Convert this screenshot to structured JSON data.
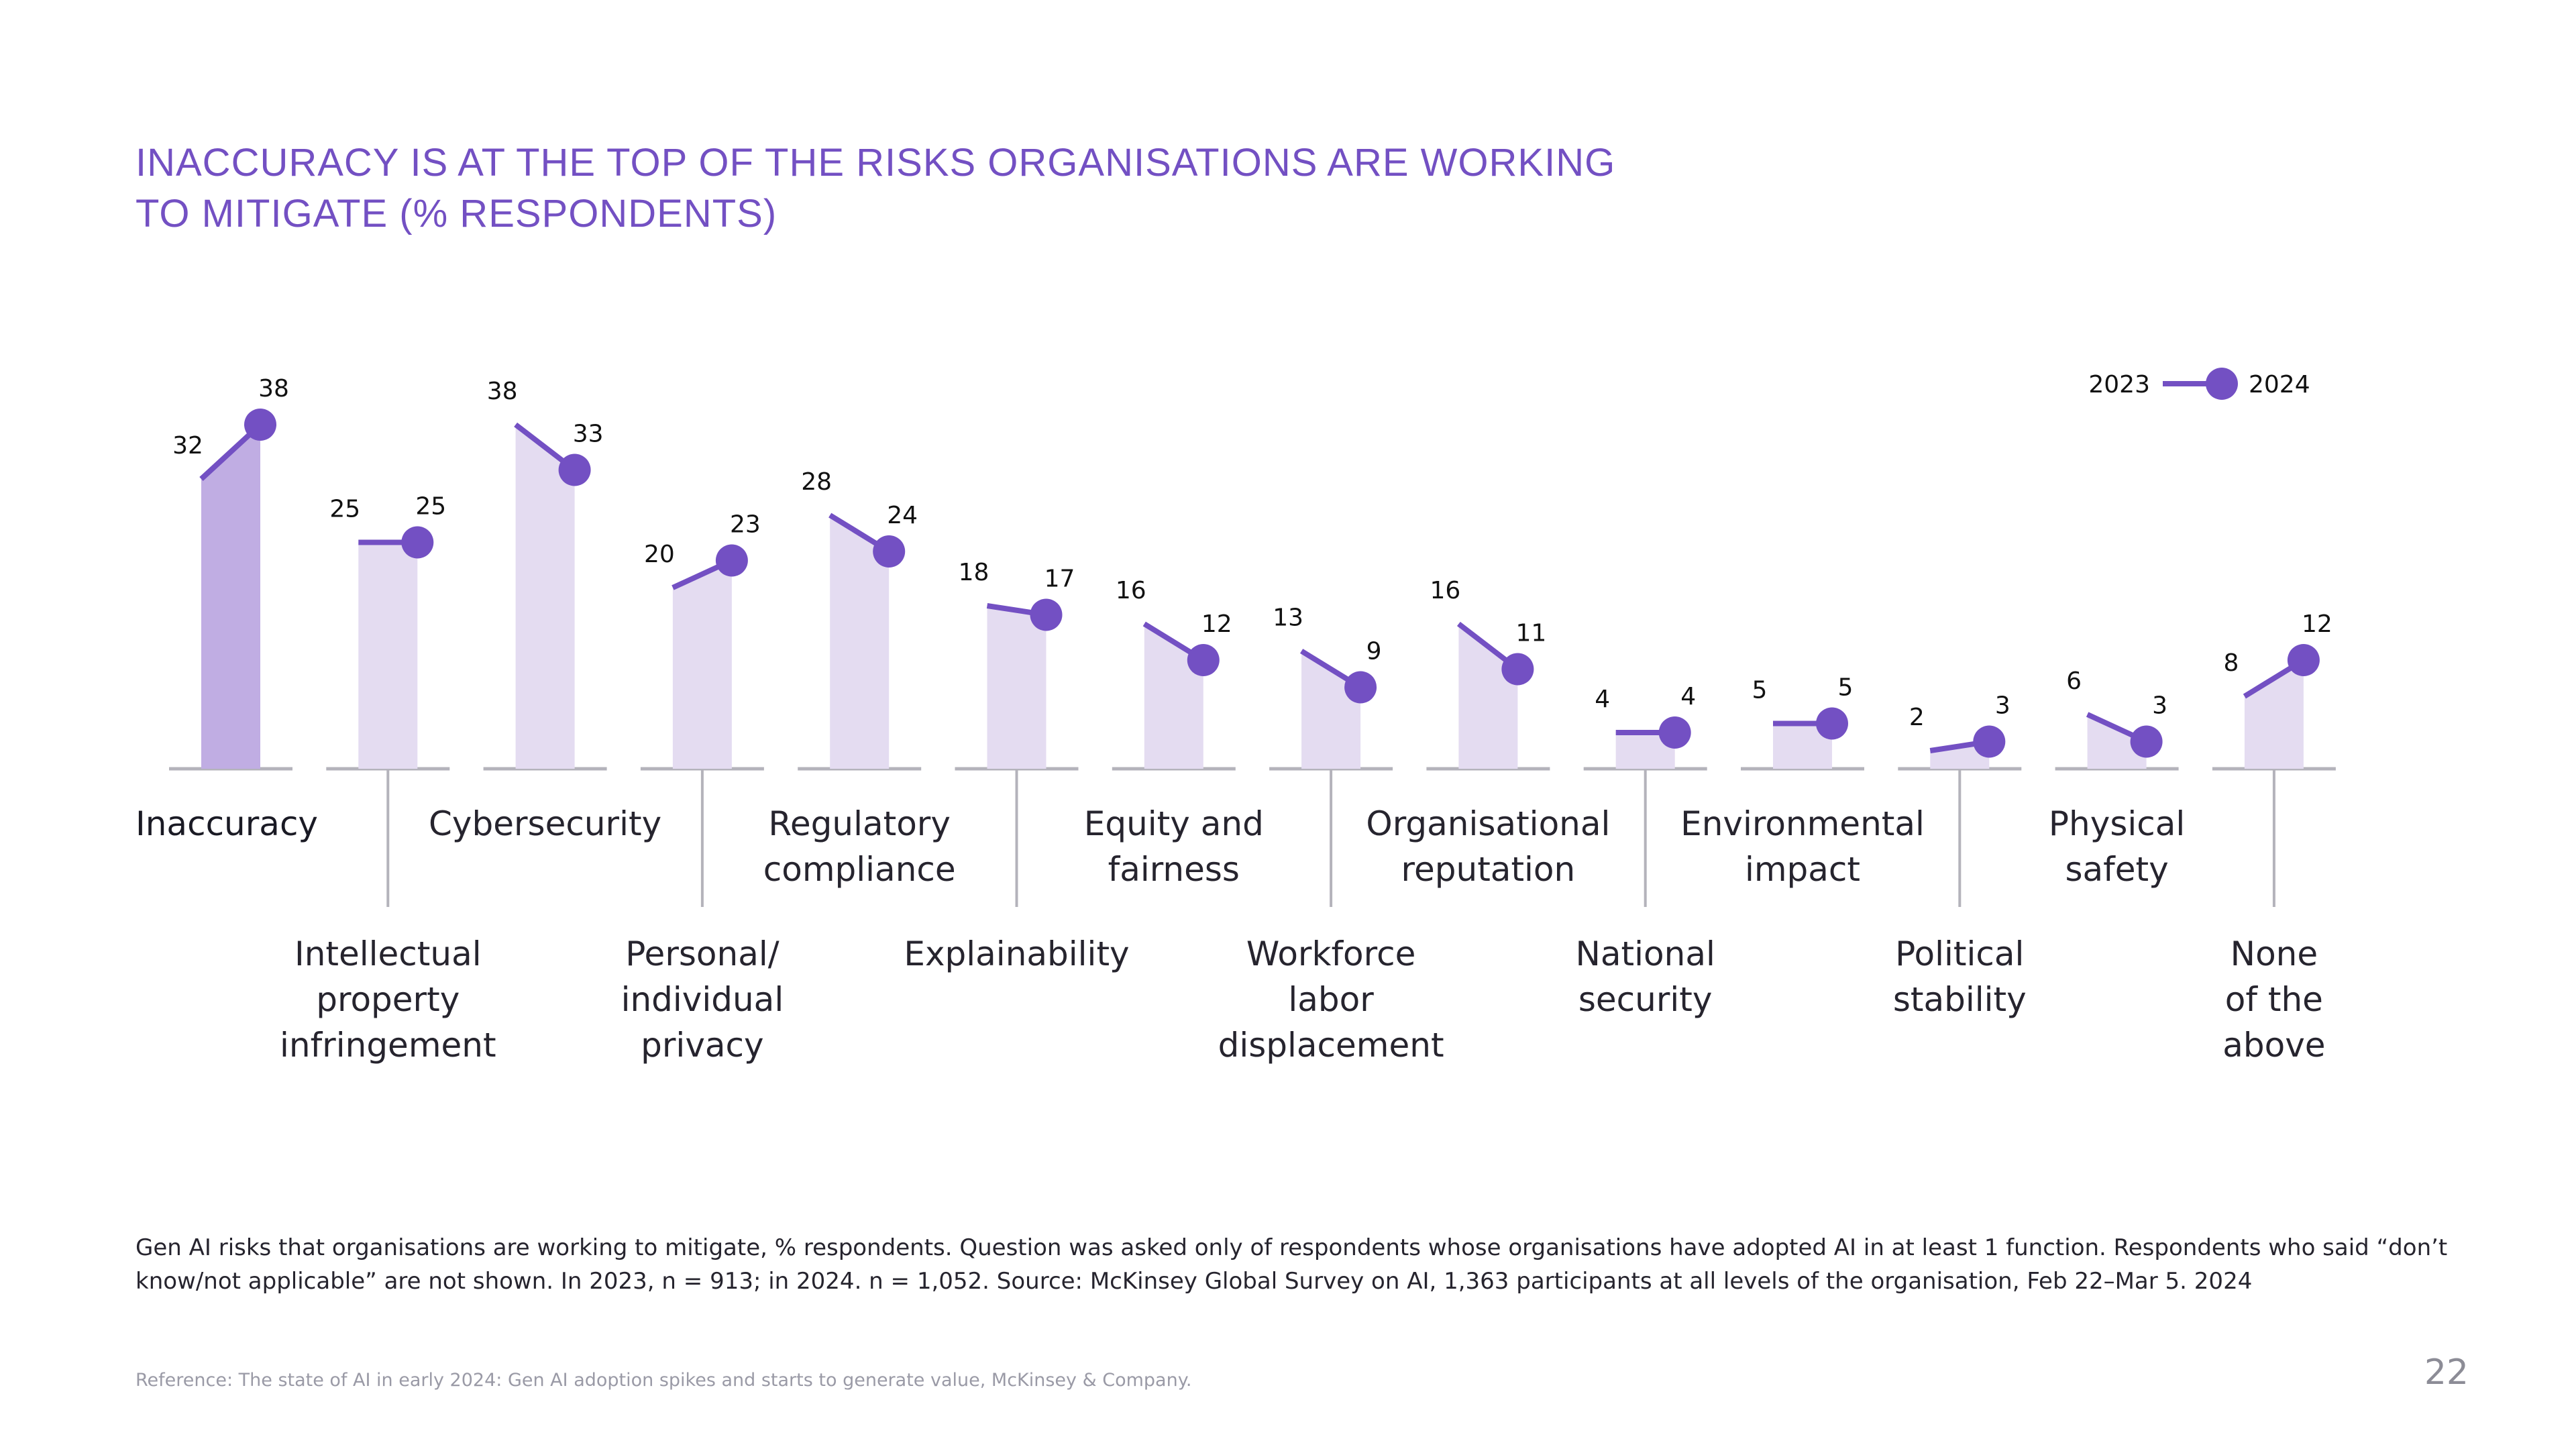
{
  "title": {
    "line1": "INACCURACY IS AT THE TOP OF THE RISKS ORGANISATIONS ARE WORKING",
    "line2": "TO MITIGATE (% RESPONDENTS)"
  },
  "colors": {
    "accent": "#7350c3",
    "bar_highlight": "#c0ade3",
    "bar": "#e4dcf1",
    "axis": "#b4b3bb",
    "title": "#7350c3"
  },
  "chart_data": {
    "type": "bar",
    "title": "Inaccuracy is at the top of the risks organisations are working to mitigate (% respondents)",
    "xlabel": "",
    "ylabel": "% respondents",
    "ylim": [
      0,
      40
    ],
    "grid": false,
    "legend_position": "top-right",
    "legend": [
      "2023",
      "2024"
    ],
    "categories": [
      "Inaccuracy",
      "Intellectual property infringement",
      "Cybersecurity",
      "Personal/ individual privacy",
      "Regulatory compliance",
      "Explainability",
      "Equity and fairness",
      "Workforce labor displacement",
      "Organisational reputation",
      "National security",
      "Environmental impact",
      "Political stability",
      "Physical safety",
      "None of the above"
    ],
    "category_labels": [
      "Inaccuracy",
      "Intellectual\nproperty\ninfringement",
      "Cybersecurity",
      "Personal/\nindividual\nprivacy",
      "Regulatory\ncompliance",
      "Explainability",
      "Equity and\nfairness",
      "Workforce\nlabor\ndisplacement",
      "Organisational\nreputation",
      "National\nsecurity",
      "Environmental\nimpact",
      "Political\nstability",
      "Physical\nsafety",
      "None\nof the\nabove"
    ],
    "series": [
      {
        "name": "2023",
        "values": [
          32,
          25,
          38,
          20,
          28,
          18,
          16,
          13,
          16,
          4,
          5,
          2,
          6,
          8
        ]
      },
      {
        "name": "2024",
        "values": [
          38,
          25,
          33,
          23,
          24,
          17,
          12,
          9,
          11,
          4,
          5,
          3,
          3,
          12
        ]
      }
    ],
    "highlighted_category": "Inaccuracy"
  },
  "legend": {
    "from_label": "2023",
    "to_label": "2024"
  },
  "footnote": "Gen AI risks that organisations are working to mitigate, % respondents. Question was asked only of respondents whose organisations have adopted AI in at least 1 function. Respondents who said “don’t know/not applicable” are not shown. In 2023, n = 913; in 2024. n = 1,052. Source: McKinsey Global Survey on AI, 1,363 participants at all levels of the organisation, Feb 22–Mar 5. 2024",
  "reference": "Reference: The state of AI in early 2024: Gen AI adoption spikes and starts to generate value, McKinsey & Company.",
  "page_number": "22"
}
